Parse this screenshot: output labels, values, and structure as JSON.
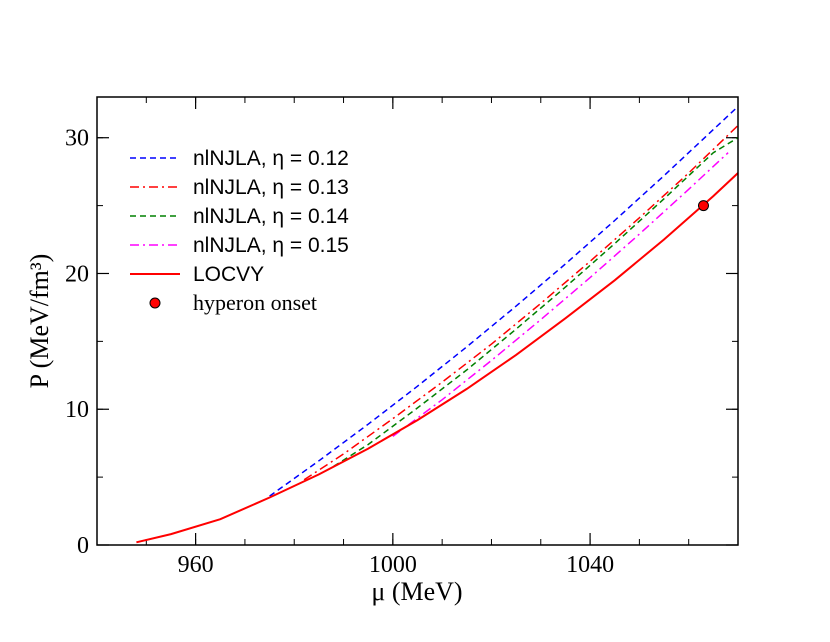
{
  "chart_data": {
    "type": "line",
    "title": "",
    "xlabel": "μ (MeV)",
    "ylabel": "P (MeV/fm³)",
    "xlim": [
      940,
      1070
    ],
    "ylim": [
      0,
      33
    ],
    "xticks": [
      {
        "value": 960,
        "label": "960"
      },
      {
        "value": 1000,
        "label": "1000"
      },
      {
        "value": 1040,
        "label": "1040"
      }
    ],
    "yticks": [
      {
        "value": 0,
        "label": "0"
      },
      {
        "value": 10,
        "label": "10"
      },
      {
        "value": 20,
        "label": "20"
      },
      {
        "value": 30,
        "label": "30"
      }
    ],
    "grid": false,
    "legend_position": "top-left",
    "series": [
      {
        "name": "nlNJLA, η = 0.12",
        "color": "#0000ff",
        "dash": "dashed",
        "x": [
          975,
          985,
          995,
          1005,
          1015,
          1025,
          1035,
          1045,
          1055,
          1065,
          1070
        ],
        "y": [
          3.6,
          6.2,
          8.9,
          11.7,
          14.6,
          17.6,
          20.7,
          23.9,
          27.2,
          30.6,
          32.3
        ]
      },
      {
        "name": "nlNJLA, η = 0.13",
        "color": "#ff0000",
        "dash": "dashdot",
        "x": [
          982,
          990,
          1000,
          1010,
          1020,
          1030,
          1040,
          1050,
          1060,
          1070
        ],
        "y": [
          4.8,
          6.7,
          9.3,
          12.0,
          14.8,
          17.8,
          20.9,
          24.1,
          27.4,
          30.9
        ]
      },
      {
        "name": "nlNJLA, η = 0.14",
        "color": "#008000",
        "dash": "dashed",
        "x": [
          988,
          995,
          1005,
          1015,
          1025,
          1035,
          1045,
          1055,
          1065,
          1070
        ],
        "y": [
          5.8,
          7.4,
          10.1,
          12.9,
          15.9,
          19.0,
          22.2,
          25.5,
          28.9,
          30.0
        ]
      },
      {
        "name": "nlNJLA, η = 0.15",
        "color": "#ff00ff",
        "dash": "dashdot",
        "x": [
          1000,
          1010,
          1020,
          1030,
          1040,
          1050,
          1060,
          1068
        ],
        "y": [
          8.0,
          10.7,
          13.6,
          16.6,
          19.7,
          22.9,
          26.2,
          28.9
        ]
      },
      {
        "name": "LOCVY",
        "color": "#ff0000",
        "dash": "solid",
        "x": [
          948,
          955,
          965,
          975,
          985,
          995,
          1005,
          1015,
          1025,
          1035,
          1045,
          1055,
          1065,
          1070
        ],
        "y": [
          0.2,
          0.8,
          1.9,
          3.5,
          5.2,
          7.1,
          9.2,
          11.5,
          14.0,
          16.7,
          19.5,
          22.5,
          25.7,
          27.4
        ]
      }
    ],
    "markers": [
      {
        "name": "hyperon onset",
        "x": 1063,
        "y": 25.0,
        "color": "#ff0000"
      }
    ]
  }
}
